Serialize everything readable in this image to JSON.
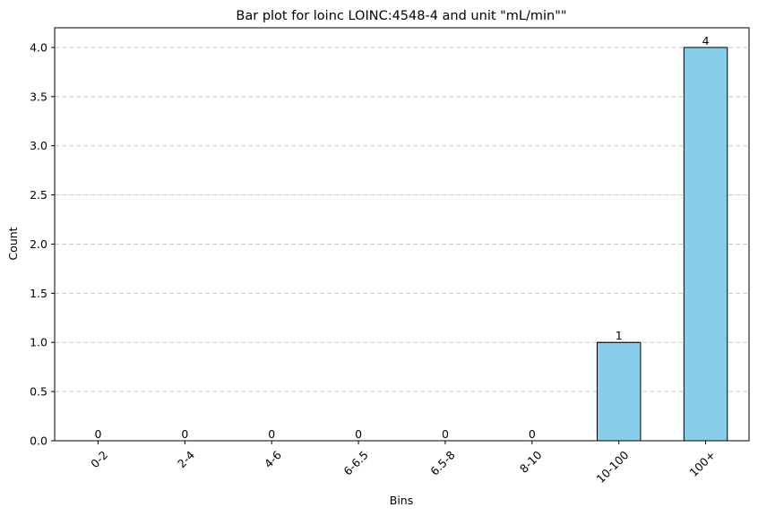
{
  "chart_data": {
    "type": "bar",
    "title": "Bar plot for loinc LOINC:4548-4 and unit \"mL/min\"\"",
    "xlabel": "Bins",
    "ylabel": "Count",
    "categories": [
      "0-2",
      "2-4",
      "4-6",
      "6-6.5",
      "6.5-8",
      "8-10",
      "10-100",
      "100+"
    ],
    "values": [
      0,
      0,
      0,
      0,
      0,
      0,
      1,
      4
    ],
    "data_labels": [
      "0",
      "0",
      "0",
      "0",
      "0",
      "0",
      "1",
      "4"
    ],
    "ylim": [
      0,
      4.2
    ],
    "yticks": [
      "0.0",
      "0.5",
      "1.0",
      "1.5",
      "2.0",
      "2.5",
      "3.0",
      "3.5",
      "4.0"
    ],
    "grid": "y-dashed",
    "legend": "none",
    "bar_color": "#87ceeb",
    "edge_color": "#000000",
    "grid_color": "#c8c8c8"
  }
}
